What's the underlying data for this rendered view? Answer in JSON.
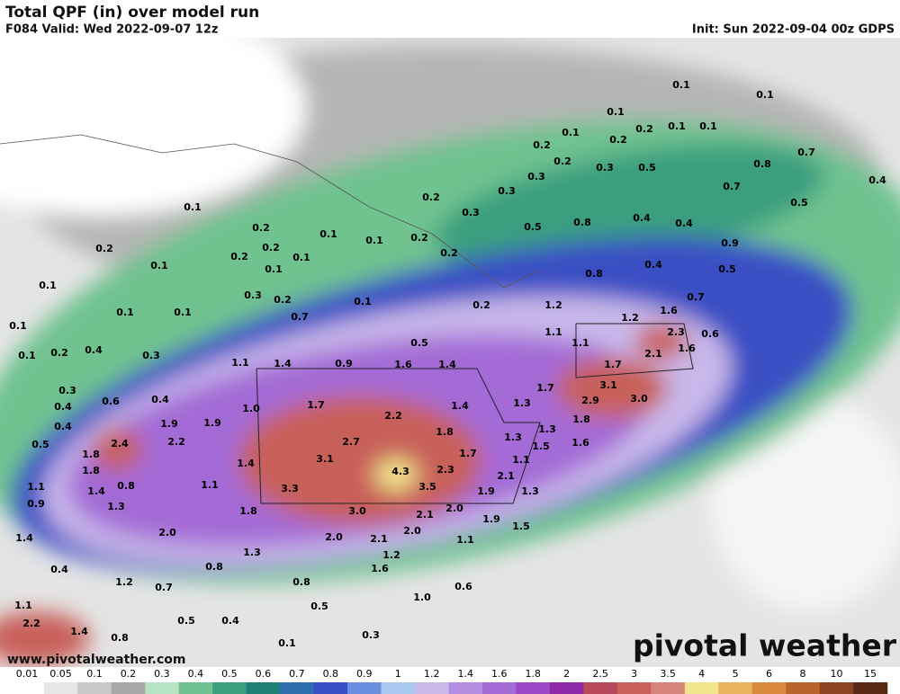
{
  "header": {
    "title": "Total QPF (in) over model run",
    "valid": "F084 Valid: Wed 2022-09-07 12z",
    "init": "Init: Sun 2022-09-04 00z GDPS"
  },
  "map_labels": [
    "0.1",
    "0.1",
    "0.1",
    "0.1",
    "0.2",
    "0.1",
    "0.1",
    "0.2",
    "0.2",
    "0.2",
    "0.3",
    "0.5",
    "0.8",
    "0.7",
    "0.3",
    "0.7",
    "0.4",
    "0.2",
    "0.3",
    "0.1",
    "0.3",
    "0.5",
    "0.4",
    "0.8",
    "0.4",
    "0.5",
    "0.2",
    "0.1",
    "0.1",
    "0.2",
    "0.2",
    "0.2",
    "0.2",
    "0.2",
    "0.1",
    "0.9",
    "0.4",
    "0.1",
    "0.1",
    "0.8",
    "0.5",
    "0.1",
    "0.3",
    "0.2",
    "0.1",
    "0.7",
    "0.2",
    "1.2",
    "1.6",
    "0.1",
    "0.1",
    "0.7",
    "1.2",
    "0.1",
    "1.1",
    "2.3",
    "0.6",
    "1.1",
    "0.5",
    "1.6",
    "0.4",
    "0.1",
    "0.2",
    "0.3",
    "2.1",
    "1.1",
    "1.4",
    "0.9",
    "1.6",
    "1.4",
    "1.7",
    "0.3",
    "1.7",
    "3.1",
    "1.3",
    "0.6",
    "0.4",
    "1.7",
    "2.9",
    "3.0",
    "0.4",
    "1.0",
    "1.4",
    "1.8",
    "0.4",
    "1.9",
    "1.9",
    "2.2",
    "1.8",
    "1.3",
    "1.3",
    "2.4",
    "2.2",
    "1.6",
    "0.5",
    "2.7",
    "1.5",
    "1.8",
    "1.7",
    "1.1",
    "3.1",
    "4.3",
    "1.4",
    "1.8",
    "2.3",
    "2.1",
    "1.1",
    "0.8",
    "1.4",
    "1.1",
    "3.3",
    "3.5",
    "1.9",
    "1.3",
    "0.9",
    "1.3",
    "1.8",
    "3.0",
    "2.1",
    "2.0",
    "1.9",
    "1.5",
    "2.0",
    "1.4",
    "2.0",
    "2.1",
    "2.0",
    "1.1",
    "1.3",
    "0.4",
    "0.8",
    "1.6",
    "1.2",
    "0.8",
    "0.6",
    "1.2",
    "0.7",
    "1.0",
    "1.1",
    "0.5",
    "2.2",
    "0.5",
    "0.4",
    "1.4",
    "0.8",
    "0.3",
    "0.1"
  ],
  "legend": {
    "labels": [
      "0.01",
      "0.05",
      "0.1",
      "0.2",
      "0.3",
      "0.4",
      "0.5",
      "0.6",
      "0.7",
      "0.8",
      "0.9",
      "1",
      "1.2",
      "1.4",
      "1.6",
      "1.8",
      "2",
      "2.5",
      "3",
      "3.5",
      "4",
      "5",
      "6",
      "8",
      "10",
      "15"
    ],
    "colors": [
      "#ffffff",
      "#e6e6e6",
      "#c8c8c8",
      "#a8a8a8",
      "#b6e3c4",
      "#6fc28f",
      "#3a9f7f",
      "#1f7f75",
      "#2f6fb0",
      "#3a4fc4",
      "#6b8fe0",
      "#a9c9f0",
      "#c9b8ea",
      "#b38ee0",
      "#a46ad6",
      "#9b45c9",
      "#8e2aa8",
      "#b8495a",
      "#c8615a",
      "#d8847a",
      "#f2e48c",
      "#e8b45c",
      "#d98a3c",
      "#b8642c",
      "#8c4420",
      "#5a2a14"
    ]
  },
  "watermark": {
    "url": "www.pivotalweather.com",
    "brand": "pivotal weather"
  }
}
